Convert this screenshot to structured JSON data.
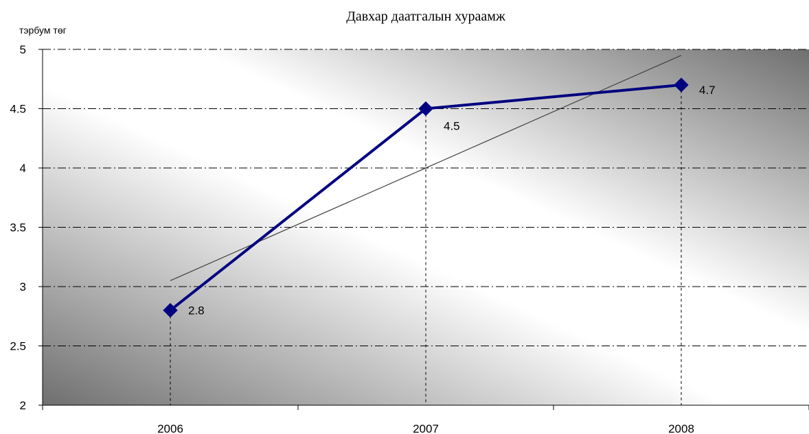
{
  "chart_data": {
    "type": "line",
    "title": "Давхар даатгалын хураамж",
    "ylabel": "тэрбум төг",
    "xlabel": "",
    "categories": [
      "2006",
      "2007",
      "2008"
    ],
    "series": [
      {
        "values": [
          2.8,
          4.5,
          4.7
        ],
        "color": "#000080",
        "marker": "diamond",
        "data_labels": [
          "2.8",
          "4.5",
          "4.7"
        ]
      }
    ],
    "trendline": {
      "type": "linear",
      "color": "#404040",
      "start_value": 3.05,
      "end_value": 4.95
    },
    "ylim": [
      2,
      5
    ],
    "yticks": [
      "2",
      "2.5",
      "3",
      "3.5",
      "4",
      "4.5",
      "5"
    ],
    "grid": true,
    "grid_style": "dash-dot",
    "background": "gradient gray"
  }
}
